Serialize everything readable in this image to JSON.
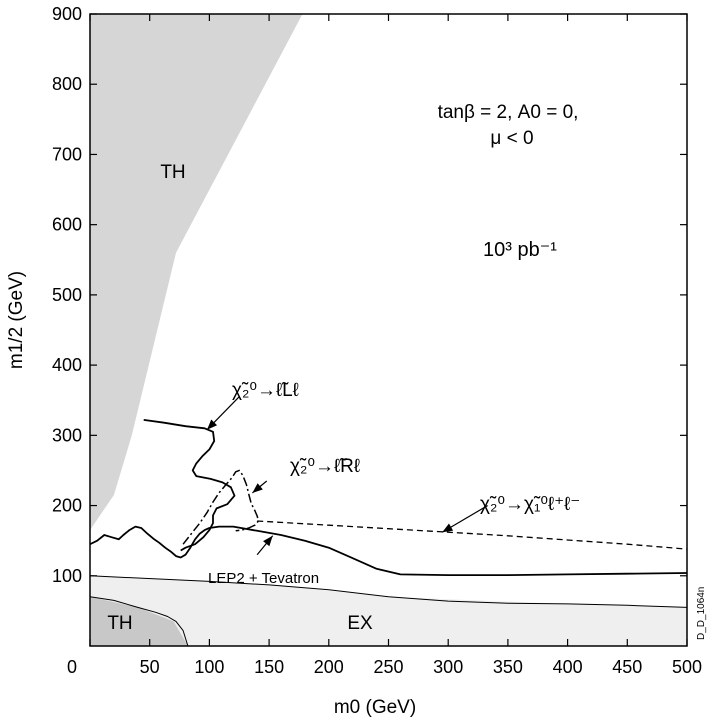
{
  "chart_data": {
    "type": "line",
    "title": "",
    "xlabel": "m0 (GeV)",
    "ylabel": "m1/2 (GeV)",
    "xlim": [
      0,
      500
    ],
    "ylim": [
      0,
      900
    ],
    "grid": false,
    "x_ticks": [
      "0",
      "50",
      "100",
      "150",
      "200",
      "250",
      "300",
      "350",
      "400",
      "450",
      "500"
    ],
    "y_ticks": [
      "100",
      "200",
      "300",
      "400",
      "500",
      "600",
      "700",
      "800",
      "900"
    ],
    "annotations": {
      "params_line1": "tanβ = 2, A0 = 0,",
      "params_line2": "μ < 0",
      "luminosity": "10³ pb⁻¹",
      "th_upper": "TH",
      "th_lower": "TH",
      "ex": "EX",
      "lep_tevatron": "LEP2 + Tevatron",
      "decay_left": "χ̃₂⁰→ℓ̃Lℓ",
      "decay_right": "χ̃₂⁰→ℓ̃Rℓ",
      "decay_three_body": "χ̃₂⁰→χ̃₁⁰ℓ⁺ℓ⁻",
      "figure_id": "D_D_1064n"
    },
    "regions": [
      {
        "name": "TH",
        "points": [
          [
            0,
            900
          ],
          [
            178,
            900
          ],
          [
            72,
            560
          ],
          [
            35,
            300
          ],
          [
            20,
            215
          ],
          [
            0,
            165
          ]
        ]
      },
      {
        "name": "TH",
        "points": [
          [
            0,
            70
          ],
          [
            40,
            55
          ],
          [
            70,
            35
          ],
          [
            82,
            0
          ],
          [
            0,
            0
          ]
        ]
      },
      {
        "name": "EX",
        "points": [
          [
            0,
            100
          ],
          [
            150,
            87
          ],
          [
            250,
            70
          ],
          [
            400,
            60
          ],
          [
            500,
            55
          ],
          [
            500,
            0
          ],
          [
            0,
            0
          ]
        ]
      }
    ],
    "series": [
      {
        "name": "χ̃₂⁰→ℓ̃Lℓ",
        "style": "solid",
        "points": [
          [
            45,
            322
          ],
          [
            62,
            318
          ],
          [
            80,
            313
          ],
          [
            96,
            310
          ],
          [
            103,
            305
          ],
          [
            104,
            292
          ],
          [
            100,
            280
          ],
          [
            94,
            270
          ],
          [
            89,
            260
          ],
          [
            86,
            250
          ],
          [
            89,
            242
          ],
          [
            101,
            238
          ],
          [
            111,
            233
          ],
          [
            118,
            226
          ],
          [
            121,
            214
          ],
          [
            115,
            202
          ],
          [
            106,
            196
          ],
          [
            103,
            186
          ],
          [
            103,
            175
          ],
          [
            100,
            165
          ],
          [
            95,
            155
          ],
          [
            88,
            145
          ],
          [
            80,
            140
          ],
          [
            76,
            136
          ]
        ]
      },
      {
        "name": "χ̃₂⁰→ℓ̃Rℓ",
        "style": "dashdot",
        "points": [
          [
            78,
            145
          ],
          [
            84,
            158
          ],
          [
            92,
            175
          ],
          [
            98,
            190
          ],
          [
            103,
            205
          ],
          [
            108,
            218
          ],
          [
            114,
            230
          ],
          [
            119,
            240
          ],
          [
            122,
            248
          ],
          [
            125,
            250
          ],
          [
            128,
            243
          ],
          [
            131,
            230
          ],
          [
            133,
            216
          ],
          [
            135,
            203
          ],
          [
            138,
            193
          ],
          [
            140,
            185
          ],
          [
            141,
            178
          ],
          [
            138,
            172
          ],
          [
            133,
            168
          ],
          [
            127,
            165
          ],
          [
            122,
            164
          ]
        ]
      },
      {
        "name": "χ̃₂⁰→χ̃₁⁰ℓ⁺ℓ⁻",
        "style": "dashed",
        "points": [
          [
            140,
            178
          ],
          [
            200,
            172
          ],
          [
            250,
            167
          ],
          [
            300,
            162
          ],
          [
            350,
            157
          ],
          [
            400,
            151
          ],
          [
            450,
            145
          ],
          [
            500,
            138
          ]
        ]
      },
      {
        "name": "LEP2 + Tevatron",
        "style": "solid",
        "points": [
          [
            0,
            145
          ],
          [
            6,
            150
          ],
          [
            12,
            158
          ],
          [
            18,
            155
          ],
          [
            24,
            152
          ],
          [
            28,
            158
          ],
          [
            33,
            165
          ],
          [
            38,
            170
          ],
          [
            43,
            168
          ],
          [
            48,
            160
          ],
          [
            53,
            153
          ],
          [
            58,
            147
          ],
          [
            63,
            140
          ],
          [
            68,
            134
          ],
          [
            72,
            128
          ],
          [
            76,
            126
          ],
          [
            80,
            130
          ],
          [
            84,
            140
          ],
          [
            88,
            152
          ],
          [
            92,
            160
          ],
          [
            96,
            165
          ],
          [
            100,
            168
          ],
          [
            108,
            170
          ],
          [
            120,
            170
          ],
          [
            140,
            164
          ],
          [
            160,
            158
          ],
          [
            180,
            150
          ],
          [
            200,
            140
          ],
          [
            220,
            125
          ],
          [
            240,
            110
          ],
          [
            260,
            102
          ],
          [
            300,
            101
          ],
          [
            350,
            101
          ],
          [
            400,
            102
          ],
          [
            450,
            103
          ],
          [
            500,
            104
          ]
        ]
      },
      {
        "name": "EX boundary",
        "style": "thin",
        "points": [
          [
            0,
            100
          ],
          [
            100,
            92
          ],
          [
            150,
            87
          ],
          [
            200,
            80
          ],
          [
            250,
            70
          ],
          [
            300,
            64
          ],
          [
            350,
            61
          ],
          [
            400,
            60
          ],
          [
            450,
            58
          ],
          [
            500,
            55
          ]
        ]
      },
      {
        "name": "TH lower boundary",
        "style": "thin",
        "points": [
          [
            0,
            70
          ],
          [
            20,
            65
          ],
          [
            40,
            55
          ],
          [
            55,
            48
          ],
          [
            65,
            42
          ],
          [
            72,
            35
          ],
          [
            78,
            22
          ],
          [
            82,
            0
          ]
        ]
      }
    ],
    "arrows": [
      {
        "label": "χ̃₂⁰→ℓ̃Lℓ",
        "from": [
          125,
          355
        ],
        "to": [
          98,
          308
        ]
      },
      {
        "label": "χ̃₂⁰→ℓ̃Rℓ",
        "from": [
          148,
          235
        ],
        "to": [
          136,
          218
        ]
      },
      {
        "label": "χ̃₂⁰→χ̃₁⁰ℓ⁺ℓ⁻",
        "from": [
          333,
          200
        ],
        "to": [
          295,
          162
        ]
      },
      {
        "label": "LEP2 + Tevatron",
        "from": [
          140,
          130
        ],
        "to": [
          153,
          157
        ]
      }
    ]
  },
  "colors": {
    "th": "#d6d6d6",
    "th_lower": "#c8c8c8",
    "ex": "#efefef",
    "line": "#000000"
  }
}
